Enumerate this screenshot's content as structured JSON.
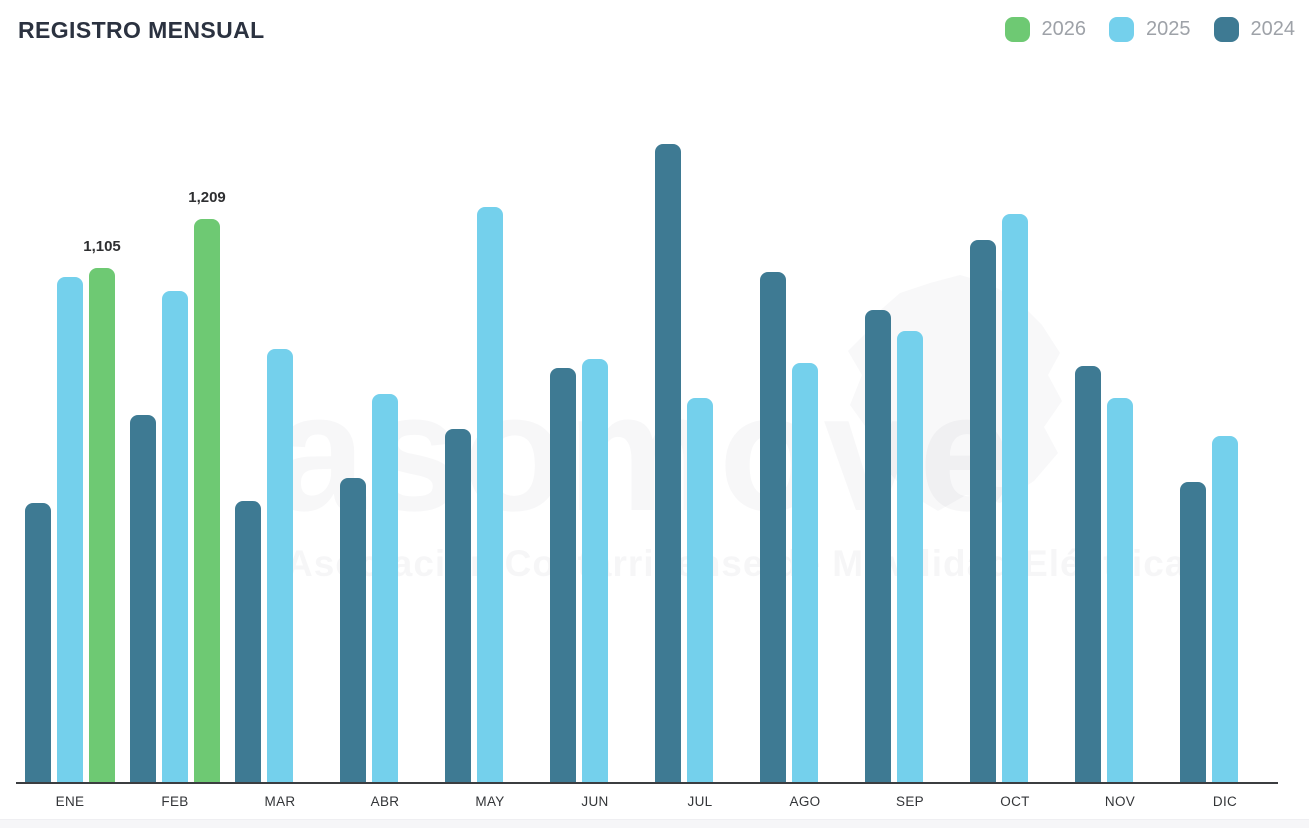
{
  "header": {
    "title": "REGISTRO MENSUAL"
  },
  "watermark": {
    "brand": "asomove",
    "subtitle": "Asociación Costarricense de Movilidad Eléctrica"
  },
  "chart_data": {
    "type": "bar",
    "title": "REGISTRO MENSUAL",
    "categories": [
      "ENE",
      "FEB",
      "MAR",
      "ABR",
      "MAY",
      "JUN",
      "JUL",
      "AGO",
      "SEP",
      "OCT",
      "NOV",
      "DIC"
    ],
    "series": [
      {
        "name": "2026",
        "color": "#6ec973",
        "values": [
          1105,
          1209,
          null,
          null,
          null,
          null,
          null,
          null,
          null,
          null,
          null,
          null
        ]
      },
      {
        "name": "2025",
        "color": "#74d0ec",
        "values": [
          1085,
          1055,
          930,
          835,
          1235,
          910,
          825,
          900,
          970,
          1220,
          825,
          745
        ]
      },
      {
        "name": "2024",
        "color": "#3e7a93",
        "values": [
          600,
          790,
          605,
          655,
          760,
          890,
          1370,
          1095,
          1015,
          1165,
          895,
          645
        ]
      }
    ],
    "data_labels": [
      {
        "series": "2026",
        "category_index": 0,
        "text": "1,105"
      },
      {
        "series": "2026",
        "category_index": 1,
        "text": "1,209"
      }
    ],
    "ylim": [
      0,
      1480
    ],
    "grid": false,
    "legend_position": "top-right",
    "xlabel": "",
    "ylabel": ""
  }
}
